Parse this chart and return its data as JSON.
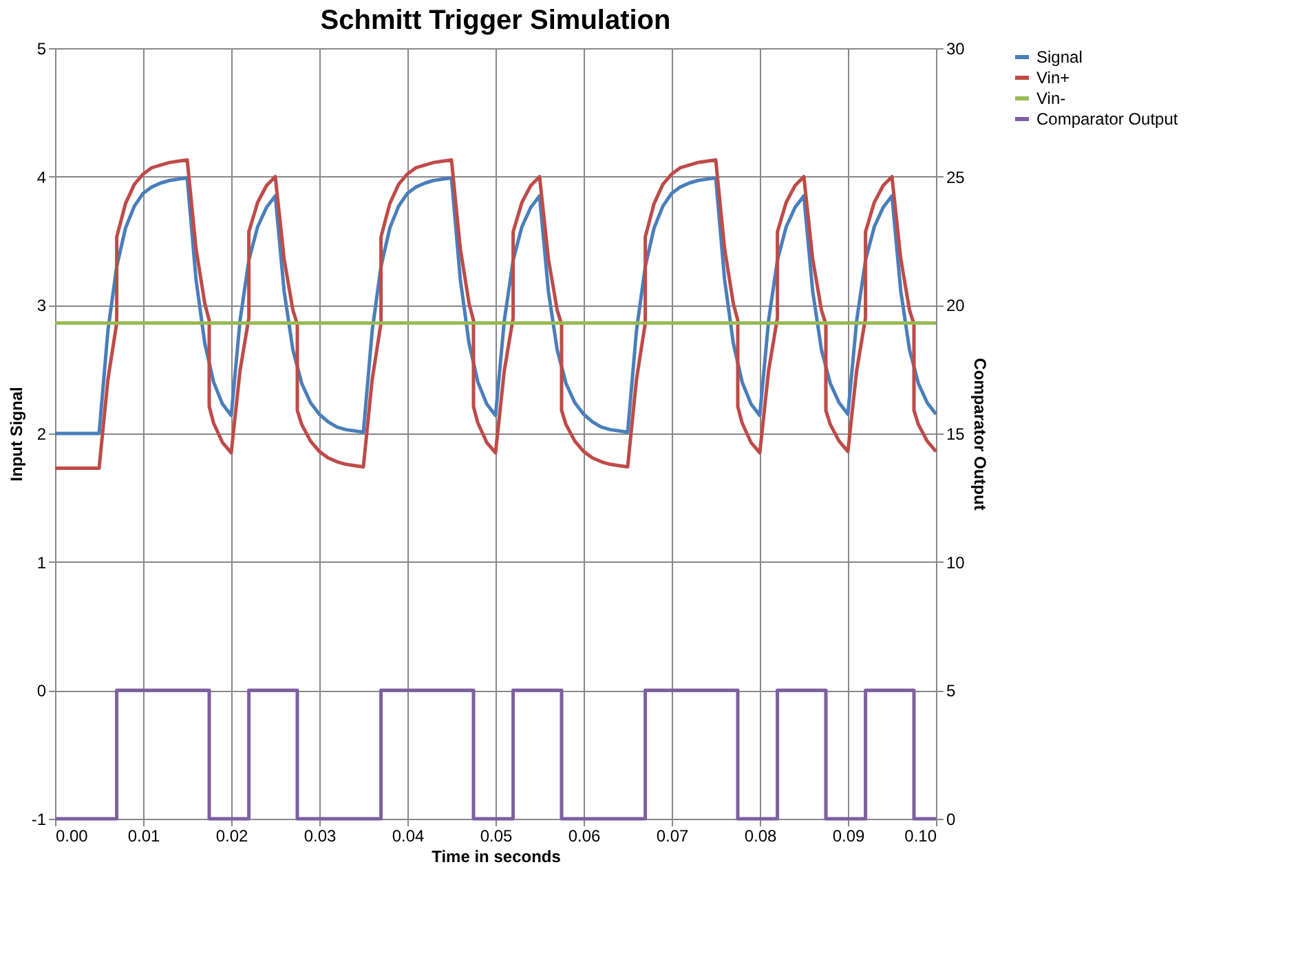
{
  "chart_data": {
    "type": "line",
    "title": "Schmitt Trigger Simulation",
    "xlabel": "Time in seconds",
    "ylabel": "Input Signal",
    "y2label": "Comparator Output",
    "xlim": [
      0,
      0.1
    ],
    "xticks": [
      {
        "value": 0,
        "label": "0.00"
      },
      {
        "value": 0.01,
        "label": "0.01"
      },
      {
        "value": 0.02,
        "label": "0.02"
      },
      {
        "value": 0.03,
        "label": "0.03"
      },
      {
        "value": 0.04,
        "label": "0.04"
      },
      {
        "value": 0.05,
        "label": "0.05"
      },
      {
        "value": 0.06,
        "label": "0.06"
      },
      {
        "value": 0.07,
        "label": "0.07"
      },
      {
        "value": 0.08,
        "label": "0.08"
      },
      {
        "value": 0.09,
        "label": "0.09"
      },
      {
        "value": 0.1,
        "label": "0.10"
      }
    ],
    "ylim": [
      -1,
      5
    ],
    "yticks": [
      -1,
      0,
      1,
      2,
      3,
      4,
      5
    ],
    "y2lim": [
      0,
      30
    ],
    "y2ticks": [
      0,
      5,
      10,
      15,
      20,
      25,
      30
    ],
    "grid": true,
    "legend": "right",
    "marker": "none",
    "line_style": "solid",
    "series": [
      {
        "name": "Signal",
        "color": "#4a7ebb",
        "x": [
          0,
          0.001,
          0.002,
          0.003,
          0.004,
          0.005,
          0.006,
          0.007,
          0.008,
          0.009,
          0.01,
          0.011,
          0.012,
          0.013,
          0.014,
          0.015,
          0.016,
          0.017,
          0.018,
          0.019,
          0.02,
          0.021,
          0.022,
          0.023,
          0.024,
          0.025,
          0.026,
          0.027,
          0.028,
          0.029,
          0.03,
          0.031,
          0.032,
          0.033,
          0.034,
          0.035,
          0.036,
          0.037,
          0.038,
          0.039,
          0.04,
          0.041,
          0.042,
          0.043,
          0.044,
          0.045,
          0.046,
          0.047,
          0.048,
          0.049,
          0.05,
          0.051,
          0.052,
          0.053,
          0.054,
          0.055,
          0.056,
          0.057,
          0.058,
          0.059,
          0.06,
          0.061,
          0.062,
          0.063,
          0.064,
          0.065,
          0.066,
          0.067,
          0.068,
          0.069,
          0.07,
          0.071,
          0.072,
          0.073,
          0.074,
          0.075,
          0.076,
          0.077,
          0.078,
          0.079,
          0.08,
          0.081,
          0.082,
          0.083,
          0.084,
          0.085,
          0.086,
          0.087,
          0.088,
          0.089,
          0.09,
          0.091,
          0.092,
          0.093,
          0.094,
          0.095,
          0.096,
          0.097,
          0.098,
          0.099,
          0.1
        ],
        "values": [
          2,
          2,
          2,
          2,
          2,
          2,
          2.8,
          3.3,
          3.6,
          3.77,
          3.87,
          3.92,
          3.95,
          3.97,
          3.98,
          3.99,
          3.2,
          2.7,
          2.4,
          2.23,
          2.14,
          2.88,
          3.35,
          3.61,
          3.76,
          3.85,
          3.11,
          2.65,
          2.39,
          2.24,
          2.15,
          2.09,
          2.05,
          2.03,
          2.02,
          2.01,
          2.8,
          3.3,
          3.6,
          3.77,
          3.87,
          3.92,
          3.95,
          3.97,
          3.98,
          3.99,
          3.2,
          2.7,
          2.4,
          2.23,
          2.14,
          2.88,
          3.35,
          3.61,
          3.76,
          3.85,
          3.11,
          2.65,
          2.39,
          2.24,
          2.15,
          2.09,
          2.05,
          2.03,
          2.02,
          2.01,
          2.8,
          3.3,
          3.6,
          3.77,
          3.87,
          3.92,
          3.95,
          3.97,
          3.98,
          3.99,
          3.2,
          2.7,
          2.4,
          2.23,
          2.14,
          2.88,
          3.35,
          3.61,
          3.76,
          3.85,
          3.11,
          2.65,
          2.39,
          2.24,
          2.15,
          2.88,
          3.35,
          3.61,
          3.76,
          3.85,
          3.11,
          2.65,
          2.39,
          2.24,
          2.15
        ]
      },
      {
        "name": "Vin+",
        "color": "#be4b48",
        "x": [
          0,
          0.005,
          0.006,
          0.007,
          0.007,
          0.008,
          0.009,
          0.01,
          0.011,
          0.012,
          0.013,
          0.014,
          0.015,
          0.016,
          0.017,
          0.0175,
          0.0175,
          0.018,
          0.019,
          0.02,
          0.021,
          0.022,
          0.022,
          0.023,
          0.024,
          0.025,
          0.026,
          0.027,
          0.0275,
          0.0275,
          0.028,
          0.029,
          0.03,
          0.031,
          0.032,
          0.033,
          0.034,
          0.035,
          0.036,
          0.037,
          0.037,
          0.038,
          0.039,
          0.04,
          0.041,
          0.042,
          0.043,
          0.044,
          0.045,
          0.046,
          0.047,
          0.0475,
          0.0475,
          0.048,
          0.049,
          0.05,
          0.051,
          0.052,
          0.052,
          0.053,
          0.054,
          0.055,
          0.056,
          0.057,
          0.0575,
          0.0575,
          0.058,
          0.059,
          0.06,
          0.061,
          0.062,
          0.063,
          0.064,
          0.065,
          0.066,
          0.067,
          0.067,
          0.068,
          0.069,
          0.07,
          0.071,
          0.072,
          0.073,
          0.074,
          0.075,
          0.076,
          0.077,
          0.0775,
          0.0775,
          0.078,
          0.079,
          0.08,
          0.081,
          0.082,
          0.082,
          0.083,
          0.084,
          0.085,
          0.086,
          0.087,
          0.0875,
          0.0875,
          0.088,
          0.089,
          0.09,
          0.091,
          0.092,
          0.092,
          0.093,
          0.094,
          0.095,
          0.096,
          0.097,
          0.0975,
          0.0975,
          0.098,
          0.099,
          0.1
        ],
        "values": [
          1.73,
          1.73,
          2.42,
          2.86,
          3.53,
          3.79,
          3.94,
          4.02,
          4.07,
          4.09,
          4.11,
          4.12,
          4.13,
          3.44,
          3.01,
          2.88,
          2.21,
          2.08,
          1.93,
          1.85,
          2.49,
          2.9,
          3.57,
          3.8,
          3.93,
          4.0,
          3.36,
          2.96,
          2.85,
          2.18,
          2.07,
          1.94,
          1.86,
          1.81,
          1.78,
          1.76,
          1.75,
          1.74,
          2.42,
          2.86,
          3.53,
          3.79,
          3.94,
          4.02,
          4.07,
          4.09,
          4.11,
          4.12,
          4.13,
          3.44,
          3.01,
          2.88,
          2.21,
          2.08,
          1.93,
          1.85,
          2.49,
          2.9,
          3.57,
          3.8,
          3.93,
          4.0,
          3.36,
          2.96,
          2.85,
          2.18,
          2.07,
          1.94,
          1.86,
          1.81,
          1.78,
          1.76,
          1.75,
          1.74,
          2.42,
          2.86,
          3.53,
          3.79,
          3.94,
          4.02,
          4.07,
          4.09,
          4.11,
          4.12,
          4.13,
          3.44,
          3.01,
          2.88,
          2.21,
          2.08,
          1.93,
          1.85,
          2.49,
          2.9,
          3.57,
          3.8,
          3.93,
          4.0,
          3.36,
          2.96,
          2.85,
          2.18,
          2.07,
          1.94,
          1.86,
          2.49,
          2.9,
          3.57,
          3.8,
          3.93,
          4.0,
          3.36,
          2.96,
          2.85,
          2.18,
          2.07,
          1.94,
          1.86
        ]
      },
      {
        "name": "Vin-",
        "color": "#98b954",
        "x": [
          0,
          0.1
        ],
        "values": [
          2.86,
          2.86
        ]
      },
      {
        "name": "Comparator Output",
        "color": "#7d60a0",
        "axis": "y2",
        "x": [
          0,
          0.007,
          0.007,
          0.0175,
          0.0175,
          0.022,
          0.022,
          0.0275,
          0.0275,
          0.037,
          0.037,
          0.0475,
          0.0475,
          0.052,
          0.052,
          0.0575,
          0.0575,
          0.067,
          0.067,
          0.0775,
          0.0775,
          0.082,
          0.082,
          0.0875,
          0.0875,
          0.092,
          0.092,
          0.0975,
          0.0975,
          0.1
        ],
        "values": [
          0,
          0,
          5,
          5,
          0,
          0,
          5,
          5,
          0,
          0,
          5,
          5,
          0,
          0,
          5,
          5,
          0,
          0,
          5,
          5,
          0,
          0,
          5,
          5,
          0,
          0,
          5,
          5,
          0,
          0
        ]
      }
    ]
  }
}
